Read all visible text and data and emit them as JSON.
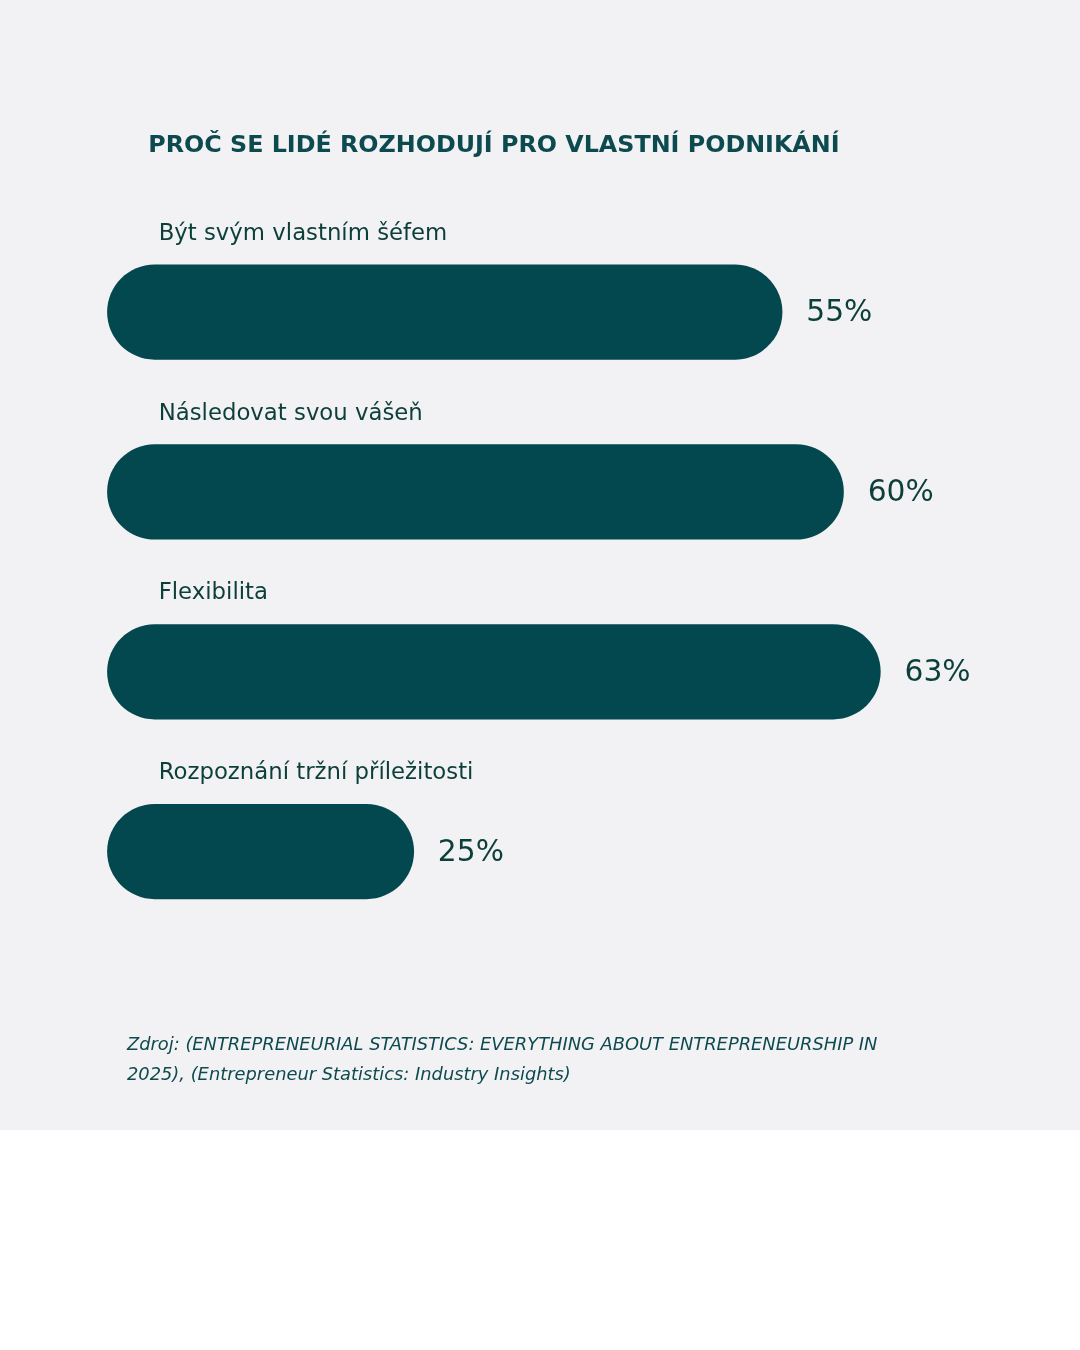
{
  "chart_data": {
    "type": "bar",
    "orientation": "horizontal",
    "title": "PROČ SE LIDÉ ROZHODUJÍ PRO VLASTNÍ PODNIKÁNÍ",
    "categories": [
      "Být svým vlastním šéfem",
      "Následovat svou vášeň",
      "Flexibilita",
      "Rozpoznání tržní příležitosti"
    ],
    "series": [
      {
        "color": "#03474f",
        "values": [
          55,
          60,
          63,
          25
        ],
        "value_labels": [
          "55%",
          "60%",
          "63%",
          "25%"
        ]
      }
    ],
    "tick_labels": false,
    "grid": false,
    "annotations": [
      "Zdroj: (ENTREPRENEURIAL STATISTICS: EVERYTHING ABOUT ENTREPRENEURSHIP IN 2025), (Entrepreneur Statistics: Industry Insights)"
    ]
  }
}
